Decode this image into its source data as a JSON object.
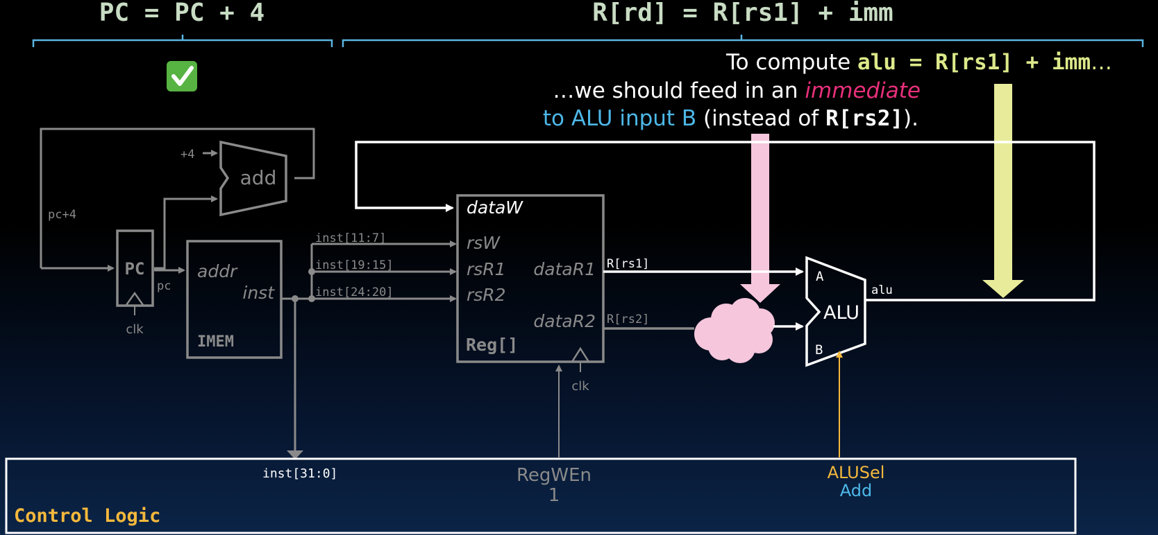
{
  "headers": {
    "left_eq": "PC = PC + 4",
    "right_eq": "R[rd] = R[rs1] + imm"
  },
  "status": {
    "left_check": "✅"
  },
  "annotation": {
    "line1_prefix": "To compute ",
    "line1_code": "alu = R[rs1] + imm",
    "line1_suffix": "…",
    "line2_prefix": "…we should feed in an ",
    "line2_em": "immediate",
    "line3_blue": "to ALU input B",
    "line3_mid": " (instead of ",
    "line3_code": "R[rs2]",
    "line3_end": ")."
  },
  "pc_logic": {
    "plus4": "+4",
    "add": "add",
    "pc_plus4": "pc+4",
    "pc_box": "PC",
    "pc_wire": "pc",
    "clk": "clk"
  },
  "imem": {
    "addr": "addr",
    "inst": "inst",
    "name": "IMEM"
  },
  "wires": {
    "inst_11_7": "inst[11:7]",
    "inst_19_15": "inst[19:15]",
    "inst_24_20": "inst[24:20]",
    "r_rs1": "R[rs1]",
    "r_rs2": "R[rs2]",
    "alu_out": "alu",
    "inst_31_0": "inst[31:0]"
  },
  "regfile": {
    "dataW": "dataW",
    "rsW": "rsW",
    "rsR1": "rsR1",
    "rsR2": "rsR2",
    "dataR1": "dataR1",
    "dataR2": "dataR2",
    "name": "Reg[]",
    "clk": "clk"
  },
  "alu": {
    "a": "A",
    "b": "B",
    "name": "ALU"
  },
  "control": {
    "title": "Control Logic",
    "regwen_label": "RegWEn",
    "regwen_value": "1",
    "alusel_label": "ALUSel",
    "alusel_value": "Add"
  },
  "colors": {
    "header_green": "#c8dcc4",
    "brace_blue": "#5ab4e0",
    "gray": "#8a8a8a",
    "white": "#ffffff",
    "yellow_code": "#dde88a",
    "pink_text": "#e8307a",
    "alu_blue": "#4db8e8",
    "pink_arrow": "#f5c6dc",
    "yellow_arrow": "#e8ec9a",
    "orange": "#f5b83c"
  }
}
